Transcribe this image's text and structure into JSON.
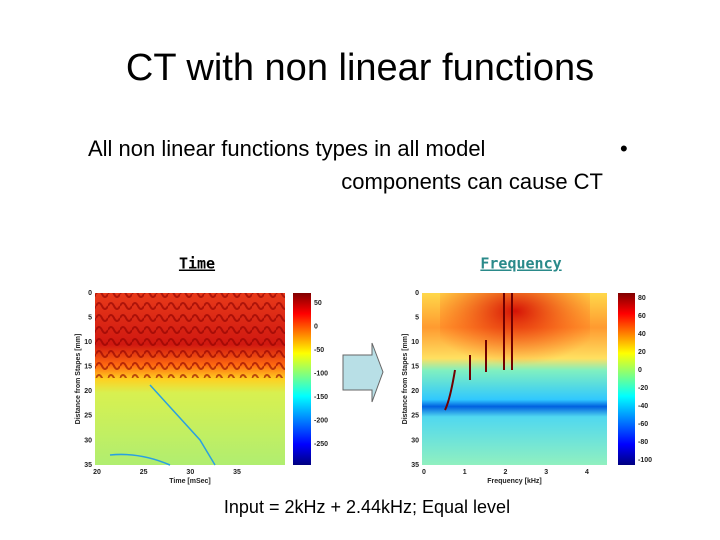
{
  "title": "CT with non linear functions",
  "bullet": {
    "lines": [
      "All non linear functions types in all model",
      "components can cause CT"
    ],
    "marker": "•"
  },
  "panels": [
    {
      "label": "Time",
      "plot": {
        "ylabel": "Distance from Stapes [mm]",
        "xlabel": "Time [mSec]",
        "yticks": [
          "0",
          "5",
          "10",
          "15",
          "20",
          "25",
          "30",
          "35"
        ],
        "xticks": [
          "20",
          "25",
          "30",
          "35"
        ],
        "colorbar": [
          "50",
          "0",
          "-50",
          "-100",
          "-150",
          "-200",
          "-250"
        ]
      }
    },
    {
      "label": "Frequency",
      "plot": {
        "ylabel": "Distance from Stapes [mm]",
        "xlabel": "Frequency [kHz]",
        "yticks": [
          "0",
          "5",
          "10",
          "15",
          "20",
          "25",
          "30",
          "35"
        ],
        "xticks": [
          "0",
          "1",
          "2",
          "3",
          "4"
        ],
        "colorbar": [
          "80",
          "60",
          "40",
          "20",
          "0",
          "-20",
          "-40",
          "-60",
          "-80",
          "-100"
        ]
      }
    }
  ],
  "caption": "Input = 2kHz + 2.44kHz; Equal level"
}
